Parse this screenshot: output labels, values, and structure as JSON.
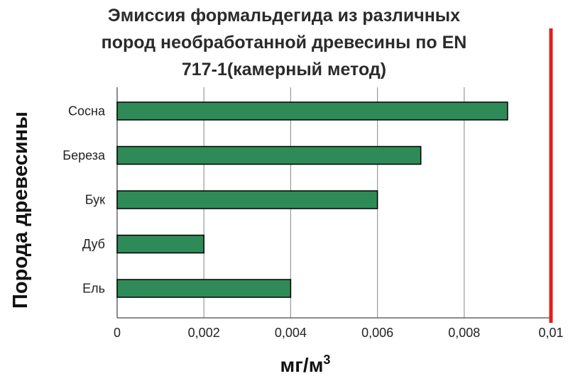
{
  "chart_data": {
    "type": "bar",
    "orientation": "horizontal",
    "title_lines": [
      "Эмиссия формальдегида из различных",
      "пород необработанной древесины по EN",
      "717-1(камерный метод)"
    ],
    "categories": [
      "Сосна",
      "Береза",
      "Бук",
      "Дуб",
      "Ель"
    ],
    "values": [
      0.009,
      0.007,
      0.006,
      0.002,
      0.004
    ],
    "xlabel_prefix": "мг/м",
    "xlabel_sup": "3",
    "ylabel": "Порода древесины",
    "x_ticks": [
      "0",
      "0,002",
      "0,004",
      "0,006",
      "0,008",
      "0,01"
    ],
    "xlim": [
      0,
      0.01
    ],
    "limit_line_value": 0.01,
    "grid": "vertical",
    "colors": {
      "bar_fill": "#2e8b57",
      "bar_stroke": "#000000",
      "limit_line": "#e0201b",
      "gridline": "#9a9a9a"
    }
  }
}
